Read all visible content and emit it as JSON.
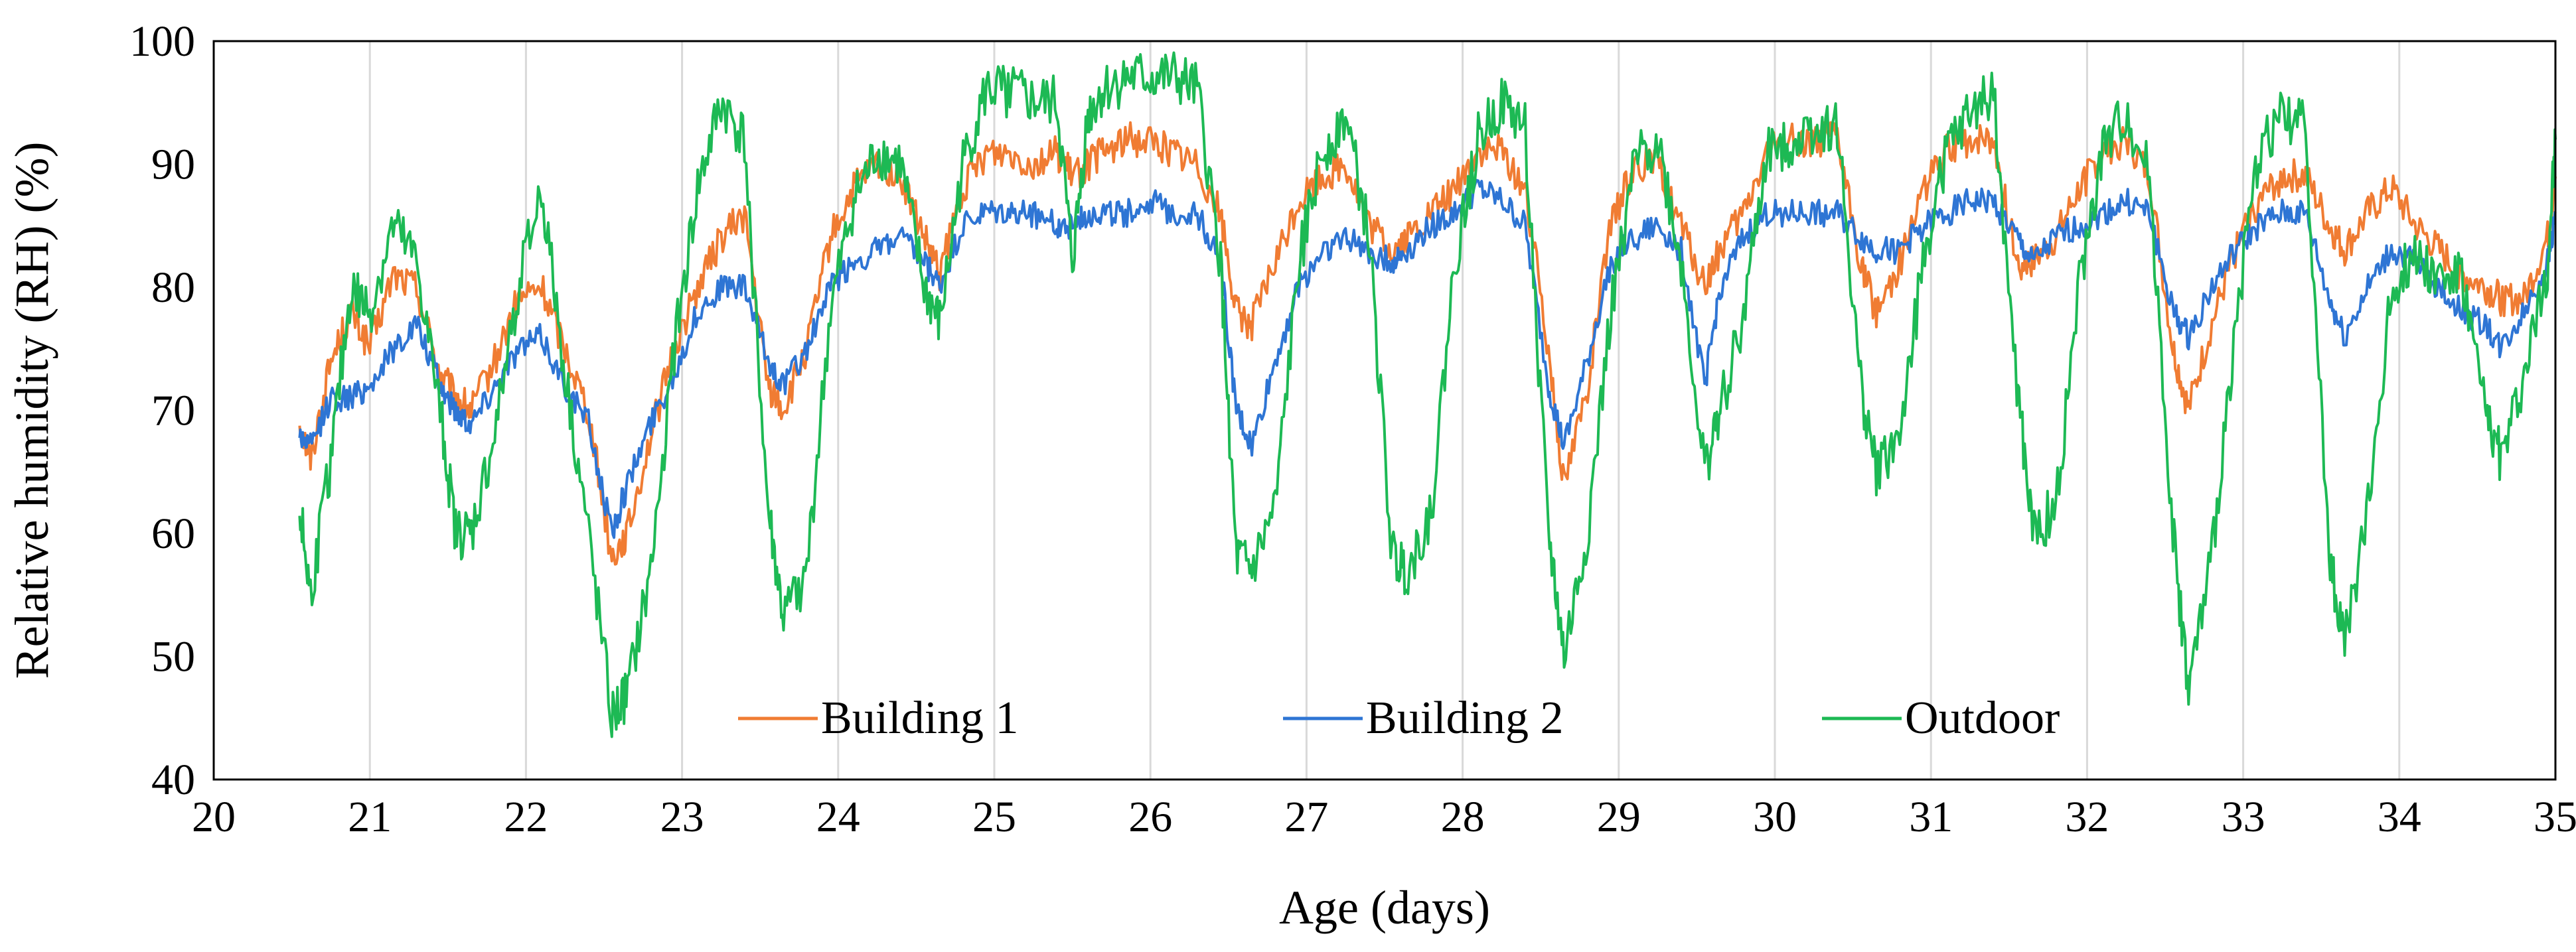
{
  "chart_data": {
    "type": "line",
    "title": "",
    "xlabel": "Age (days)",
    "ylabel": "Relative humidity (RH) (%)",
    "xlim": [
      20,
      35
    ],
    "ylim": [
      40,
      100
    ],
    "xticks": [
      "20",
      "21",
      "22",
      "23",
      "24",
      "25",
      "26",
      "27",
      "28",
      "29",
      "30",
      "31",
      "32",
      "33",
      "34",
      "35"
    ],
    "yticks": [
      "40",
      "50",
      "60",
      "70",
      "80",
      "90",
      "100"
    ],
    "grid": {
      "vertical": true,
      "horizontal": false
    },
    "legend_position": "bottom-center",
    "series": [
      {
        "name": "Building 1",
        "color": "#F07C33",
        "x": [
          20.55,
          20.62,
          20.75,
          20.88,
          21.0,
          21.15,
          21.3,
          21.45,
          21.55,
          21.65,
          21.8,
          21.95,
          22.1,
          22.25,
          22.4,
          22.55,
          22.65,
          22.8,
          22.95,
          23.1,
          23.25,
          23.4,
          23.55,
          23.65,
          23.8,
          23.95,
          24.1,
          24.25,
          24.4,
          24.55,
          24.65,
          24.8,
          24.95,
          25.1,
          25.25,
          25.4,
          25.5,
          25.6,
          25.7,
          25.85,
          26.0,
          26.15,
          26.3,
          26.45,
          26.55,
          26.65,
          26.8,
          26.95,
          27.1,
          27.25,
          27.4,
          27.55,
          27.65,
          27.8,
          27.95,
          28.1,
          28.25,
          28.4,
          28.55,
          28.65,
          28.8,
          28.95,
          29.1,
          29.25,
          29.4,
          29.55,
          29.65,
          29.8,
          29.95,
          30.1,
          30.25,
          30.4,
          30.55,
          30.65,
          30.8,
          30.95,
          31.1,
          31.25,
          31.4,
          31.55,
          31.65,
          31.8,
          31.95,
          32.1,
          32.25,
          32.4,
          32.55,
          32.65,
          32.8,
          32.95,
          33.1,
          33.25,
          33.4,
          33.55,
          33.65,
          33.8,
          33.95,
          34.1,
          34.25,
          34.4,
          34.55,
          34.65,
          34.8,
          34.95,
          35.0
        ],
        "y": [
          69,
          66,
          74,
          78,
          75,
          81,
          80,
          73,
          71,
          70,
          74,
          79,
          80,
          75,
          70,
          58,
          60,
          68,
          75,
          80,
          84,
          86,
          72,
          70,
          75,
          84,
          88,
          90,
          89,
          84,
          81,
          88,
          91,
          91,
          90,
          91,
          89,
          90,
          91,
          92,
          92,
          91,
          90,
          86,
          78,
          77,
          82,
          87,
          89,
          90,
          85,
          83,
          84,
          86,
          88,
          91,
          91,
          88,
          75,
          64,
          72,
          85,
          90,
          90,
          85,
          80,
          83,
          86,
          91,
          92,
          92,
          92,
          82,
          78,
          82,
          88,
          91,
          92,
          92,
          82,
          82,
          84,
          88,
          91,
          92,
          89,
          75,
          70,
          77,
          83,
          87,
          89,
          89,
          85,
          83,
          86,
          88,
          85,
          83,
          81,
          80,
          79,
          79,
          84,
          89
        ]
      },
      {
        "name": "Building 2",
        "color": "#2E75D4",
        "x": [
          20.55,
          20.62,
          20.75,
          20.88,
          21.0,
          21.15,
          21.3,
          21.45,
          21.55,
          21.65,
          21.8,
          21.95,
          22.1,
          22.25,
          22.4,
          22.55,
          22.65,
          22.8,
          22.95,
          23.1,
          23.25,
          23.4,
          23.55,
          23.65,
          23.8,
          23.95,
          24.1,
          24.25,
          24.4,
          24.55,
          24.65,
          24.8,
          24.95,
          25.1,
          25.25,
          25.4,
          25.5,
          25.6,
          25.7,
          25.85,
          26.0,
          26.15,
          26.3,
          26.45,
          26.55,
          26.65,
          26.8,
          26.95,
          27.1,
          27.25,
          27.4,
          27.55,
          27.65,
          27.8,
          27.95,
          28.1,
          28.25,
          28.4,
          28.55,
          28.65,
          28.8,
          28.95,
          29.1,
          29.25,
          29.4,
          29.55,
          29.65,
          29.8,
          29.95,
          30.1,
          30.25,
          30.4,
          30.55,
          30.65,
          30.8,
          30.95,
          31.1,
          31.25,
          31.4,
          31.55,
          31.65,
          31.8,
          31.95,
          32.1,
          32.25,
          32.4,
          32.55,
          32.65,
          32.8,
          32.95,
          33.1,
          33.25,
          33.4,
          33.55,
          33.65,
          33.8,
          33.95,
          34.1,
          34.25,
          34.4,
          34.55,
          34.65,
          34.8,
          34.95,
          35.0
        ],
        "y": [
          68,
          67,
          71,
          71,
          72,
          75,
          77,
          72,
          70,
          69,
          72,
          75,
          76,
          72,
          69,
          60,
          64,
          69,
          73,
          78,
          80,
          80,
          74,
          72,
          75,
          80,
          82,
          83,
          84,
          82,
          80,
          85,
          86,
          86,
          86,
          85,
          85,
          86,
          86,
          86,
          87,
          86,
          86,
          82,
          70,
          67,
          74,
          80,
          83,
          84,
          83,
          82,
          83,
          85,
          86,
          88,
          87,
          85,
          72,
          67,
          74,
          82,
          84,
          85,
          83,
          72,
          80,
          84,
          86,
          86,
          86,
          86,
          84,
          83,
          83,
          85,
          86,
          87,
          87,
          84,
          82,
          84,
          85,
          86,
          87,
          86,
          78,
          76,
          80,
          83,
          85,
          86,
          86,
          79,
          76,
          80,
          83,
          82,
          80,
          78,
          77,
          75,
          78,
          82,
          86
        ]
      },
      {
        "name": "Outdoor",
        "color": "#1DB954",
        "x": [
          20.55,
          20.62,
          20.75,
          20.88,
          21.0,
          21.15,
          21.3,
          21.45,
          21.55,
          21.65,
          21.8,
          21.95,
          22.1,
          22.25,
          22.4,
          22.55,
          22.65,
          22.8,
          22.95,
          23.1,
          23.25,
          23.4,
          23.55,
          23.65,
          23.8,
          23.95,
          24.1,
          24.25,
          24.4,
          24.55,
          24.65,
          24.8,
          24.95,
          25.1,
          25.25,
          25.4,
          25.5,
          25.6,
          25.7,
          25.85,
          26.0,
          26.15,
          26.3,
          26.45,
          26.55,
          26.65,
          26.8,
          26.95,
          27.1,
          27.25,
          27.4,
          27.55,
          27.65,
          27.8,
          27.95,
          28.1,
          28.25,
          28.4,
          28.55,
          28.65,
          28.8,
          28.95,
          29.1,
          29.25,
          29.4,
          29.55,
          29.65,
          29.8,
          29.95,
          30.1,
          30.25,
          30.4,
          30.55,
          30.65,
          30.8,
          30.95,
          31.1,
          31.25,
          31.4,
          31.55,
          31.65,
          31.8,
          31.95,
          32.1,
          32.25,
          32.4,
          32.55,
          32.65,
          32.8,
          32.95,
          33.1,
          33.25,
          33.4,
          33.55,
          33.65,
          33.8,
          33.95,
          34.1,
          34.25,
          34.4,
          34.55,
          34.65,
          34.8,
          34.95,
          35.0
        ],
        "y": [
          62,
          55,
          66,
          80,
          78,
          85,
          82,
          70,
          60,
          60,
          68,
          80,
          88,
          73,
          60,
          45,
          47,
          57,
          75,
          88,
          95,
          92,
          62,
          53,
          57,
          78,
          87,
          91,
          90,
          80,
          77,
          90,
          96,
          96,
          95,
          95,
          82,
          94,
          96,
          97,
          97,
          97,
          96,
          82,
          58,
          57,
          62,
          82,
          91,
          94,
          84,
          58,
          57,
          62,
          82,
          92,
          95,
          93,
          60,
          50,
          60,
          78,
          90,
          92,
          82,
          65,
          70,
          78,
          91,
          92,
          93,
          93,
          72,
          65,
          68,
          82,
          91,
          94,
          96,
          72,
          60,
          62,
          80,
          91,
          94,
          89,
          60,
          47,
          58,
          77,
          91,
          94,
          93,
          58,
          51,
          62,
          80,
          83,
          81,
          81,
          70,
          66,
          73,
          82,
          92
        ]
      }
    ]
  }
}
